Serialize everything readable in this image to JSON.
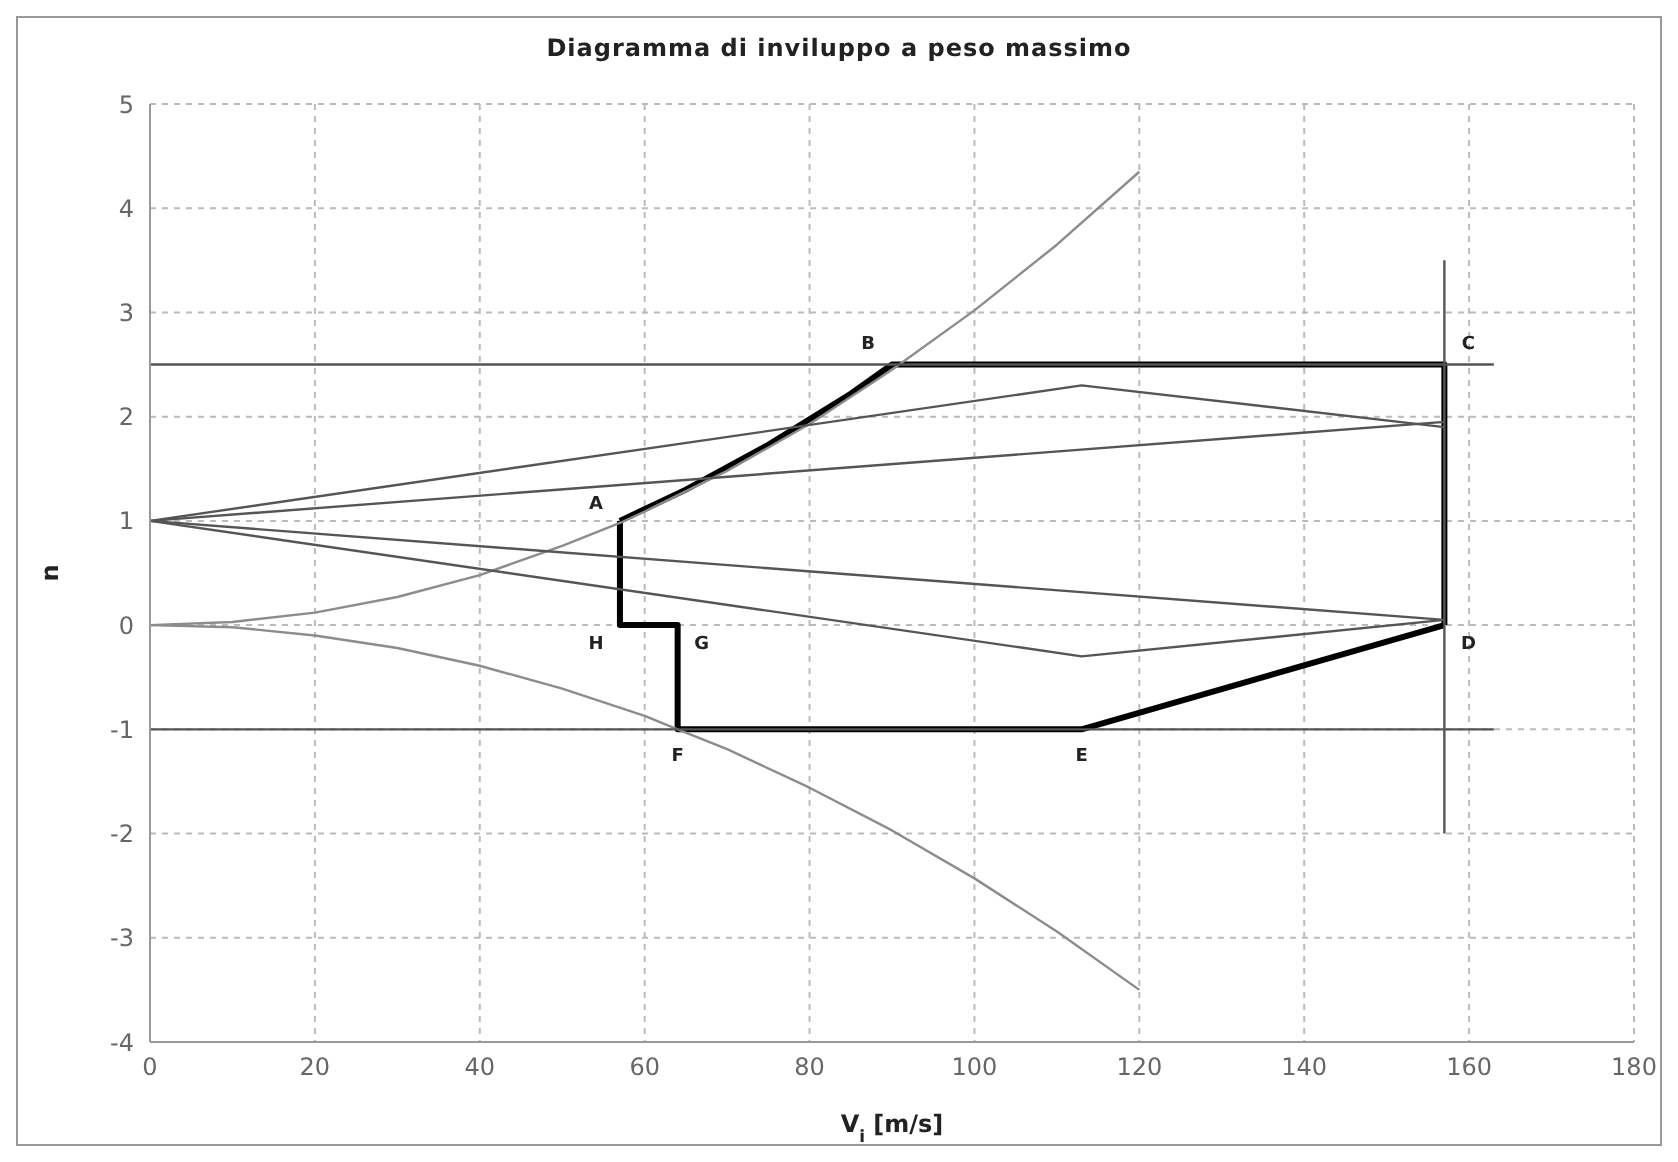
{
  "chart_data": {
    "type": "line",
    "title": "Diagramma di inviluppo a peso massimo",
    "xlabel": "V$_{i}$  [m/s]",
    "ylabel": "n",
    "xlim": [
      0,
      180
    ],
    "xticks": [
      0,
      20,
      40,
      60,
      80,
      100,
      120,
      140,
      160,
      180
    ],
    "ylim": [
      -4,
      5
    ],
    "yticks": [
      -4,
      -3,
      -2,
      -1,
      0,
      1,
      2,
      3,
      4,
      5
    ],
    "grid": true,
    "line_style": "solid",
    "series": [
      {
        "color": "#000000",
        "x": [
          57,
          65,
          75,
          85,
          90,
          157,
          157
        ],
        "values": [
          1,
          1.3,
          1.73,
          2.22,
          2.5,
          2.5,
          0
        ]
      },
      {
        "color": "#000000",
        "x": [
          57,
          57,
          64,
          64,
          113,
          157
        ],
        "values": [
          1,
          0,
          0,
          -1,
          -1,
          0
        ]
      },
      {
        "color": "#8c8c8c",
        "x": [
          0,
          10,
          20,
          30,
          40,
          50,
          57,
          60,
          70,
          80,
          90,
          100,
          110,
          120
        ],
        "values": [
          0,
          0.03,
          0.12,
          0.27,
          0.48,
          0.76,
          0.98,
          1.09,
          1.48,
          1.93,
          2.45,
          3.02,
          3.65,
          4.35
        ]
      },
      {
        "color": "#8c8c8c",
        "x": [
          0,
          10,
          20,
          30,
          40,
          50,
          60,
          64,
          70,
          80,
          90,
          100,
          110,
          120
        ],
        "values": [
          0,
          -0.02,
          -0.1,
          -0.22,
          -0.39,
          -0.61,
          -0.87,
          -1,
          -1.19,
          -1.56,
          -1.97,
          -2.43,
          -2.94,
          -3.5
        ]
      },
      {
        "color": "#555555",
        "x": [
          0,
          113,
          157
        ],
        "values": [
          1,
          2.3,
          1.9
        ]
      },
      {
        "color": "#555555",
        "x": [
          0,
          157
        ],
        "values": [
          1,
          1.95
        ]
      },
      {
        "color": "#555555",
        "x": [
          0,
          113,
          157
        ],
        "values": [
          1,
          -0.3,
          0.05
        ]
      },
      {
        "color": "#555555",
        "x": [
          0,
          157
        ],
        "values": [
          1,
          0.05
        ]
      },
      {
        "color": "#555555",
        "x": [
          0,
          163
        ],
        "values": [
          2.5,
          2.5
        ]
      },
      {
        "color": "#555555",
        "x": [
          0,
          163
        ],
        "values": [
          -1,
          -1
        ]
      },
      {
        "color": "#555555",
        "x": [
          157,
          157
        ],
        "values": [
          3.5,
          -2
        ]
      }
    ],
    "annotations": [
      {
        "text": "A",
        "x": 57,
        "y": 1
      },
      {
        "text": "B",
        "x": 90,
        "y": 2.5
      },
      {
        "text": "C",
        "x": 157,
        "y": 2.5
      },
      {
        "text": "D",
        "x": 157,
        "y": 0
      },
      {
        "text": "E",
        "x": 113,
        "y": -1
      },
      {
        "text": "F",
        "x": 64,
        "y": -1
      },
      {
        "text": "G",
        "x": 64,
        "y": 0
      },
      {
        "text": "H",
        "x": 57,
        "y": 0
      }
    ]
  }
}
